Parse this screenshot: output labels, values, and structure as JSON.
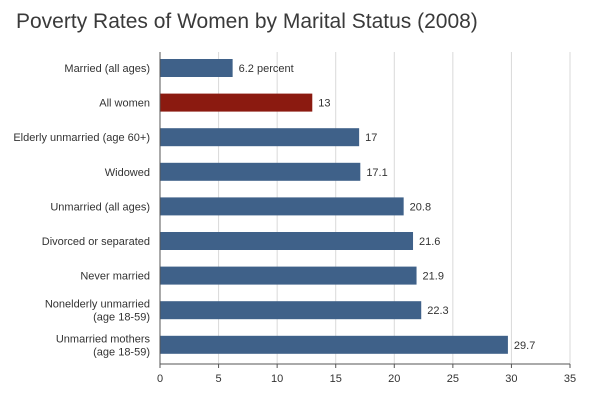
{
  "chart_data": {
    "type": "bar",
    "orientation": "horizontal",
    "title": "Poverty Rates of Women by Marital Status (2008)",
    "categories": [
      [
        "Married (all ages)"
      ],
      [
        "All women"
      ],
      [
        "Elderly unmarried (age 60+)"
      ],
      [
        "Widowed"
      ],
      [
        "Unmarried (all ages)"
      ],
      [
        "Divorced or separated"
      ],
      [
        "Never married"
      ],
      [
        "Nonelderly unmarried",
        "(age 18-59)"
      ],
      [
        "Unmarried mothers",
        "(age 18-59)"
      ]
    ],
    "values": [
      6.2,
      13,
      17,
      17.1,
      20.8,
      21.6,
      21.9,
      22.3,
      29.7
    ],
    "value_labels": [
      "6.2 percent",
      "13",
      "17",
      "17.1",
      "20.8",
      "21.6",
      "21.9",
      "22.3",
      "29.7"
    ],
    "highlight_index": 1,
    "xlim": [
      0,
      35
    ],
    "xticks": [
      0,
      5,
      10,
      15,
      20,
      25,
      30,
      35
    ],
    "grid": "vertical",
    "colors": {
      "bar": "#3f6189",
      "highlight": "#8b1a10",
      "grid": "#d9d9d9",
      "axis": "#555555"
    }
  }
}
